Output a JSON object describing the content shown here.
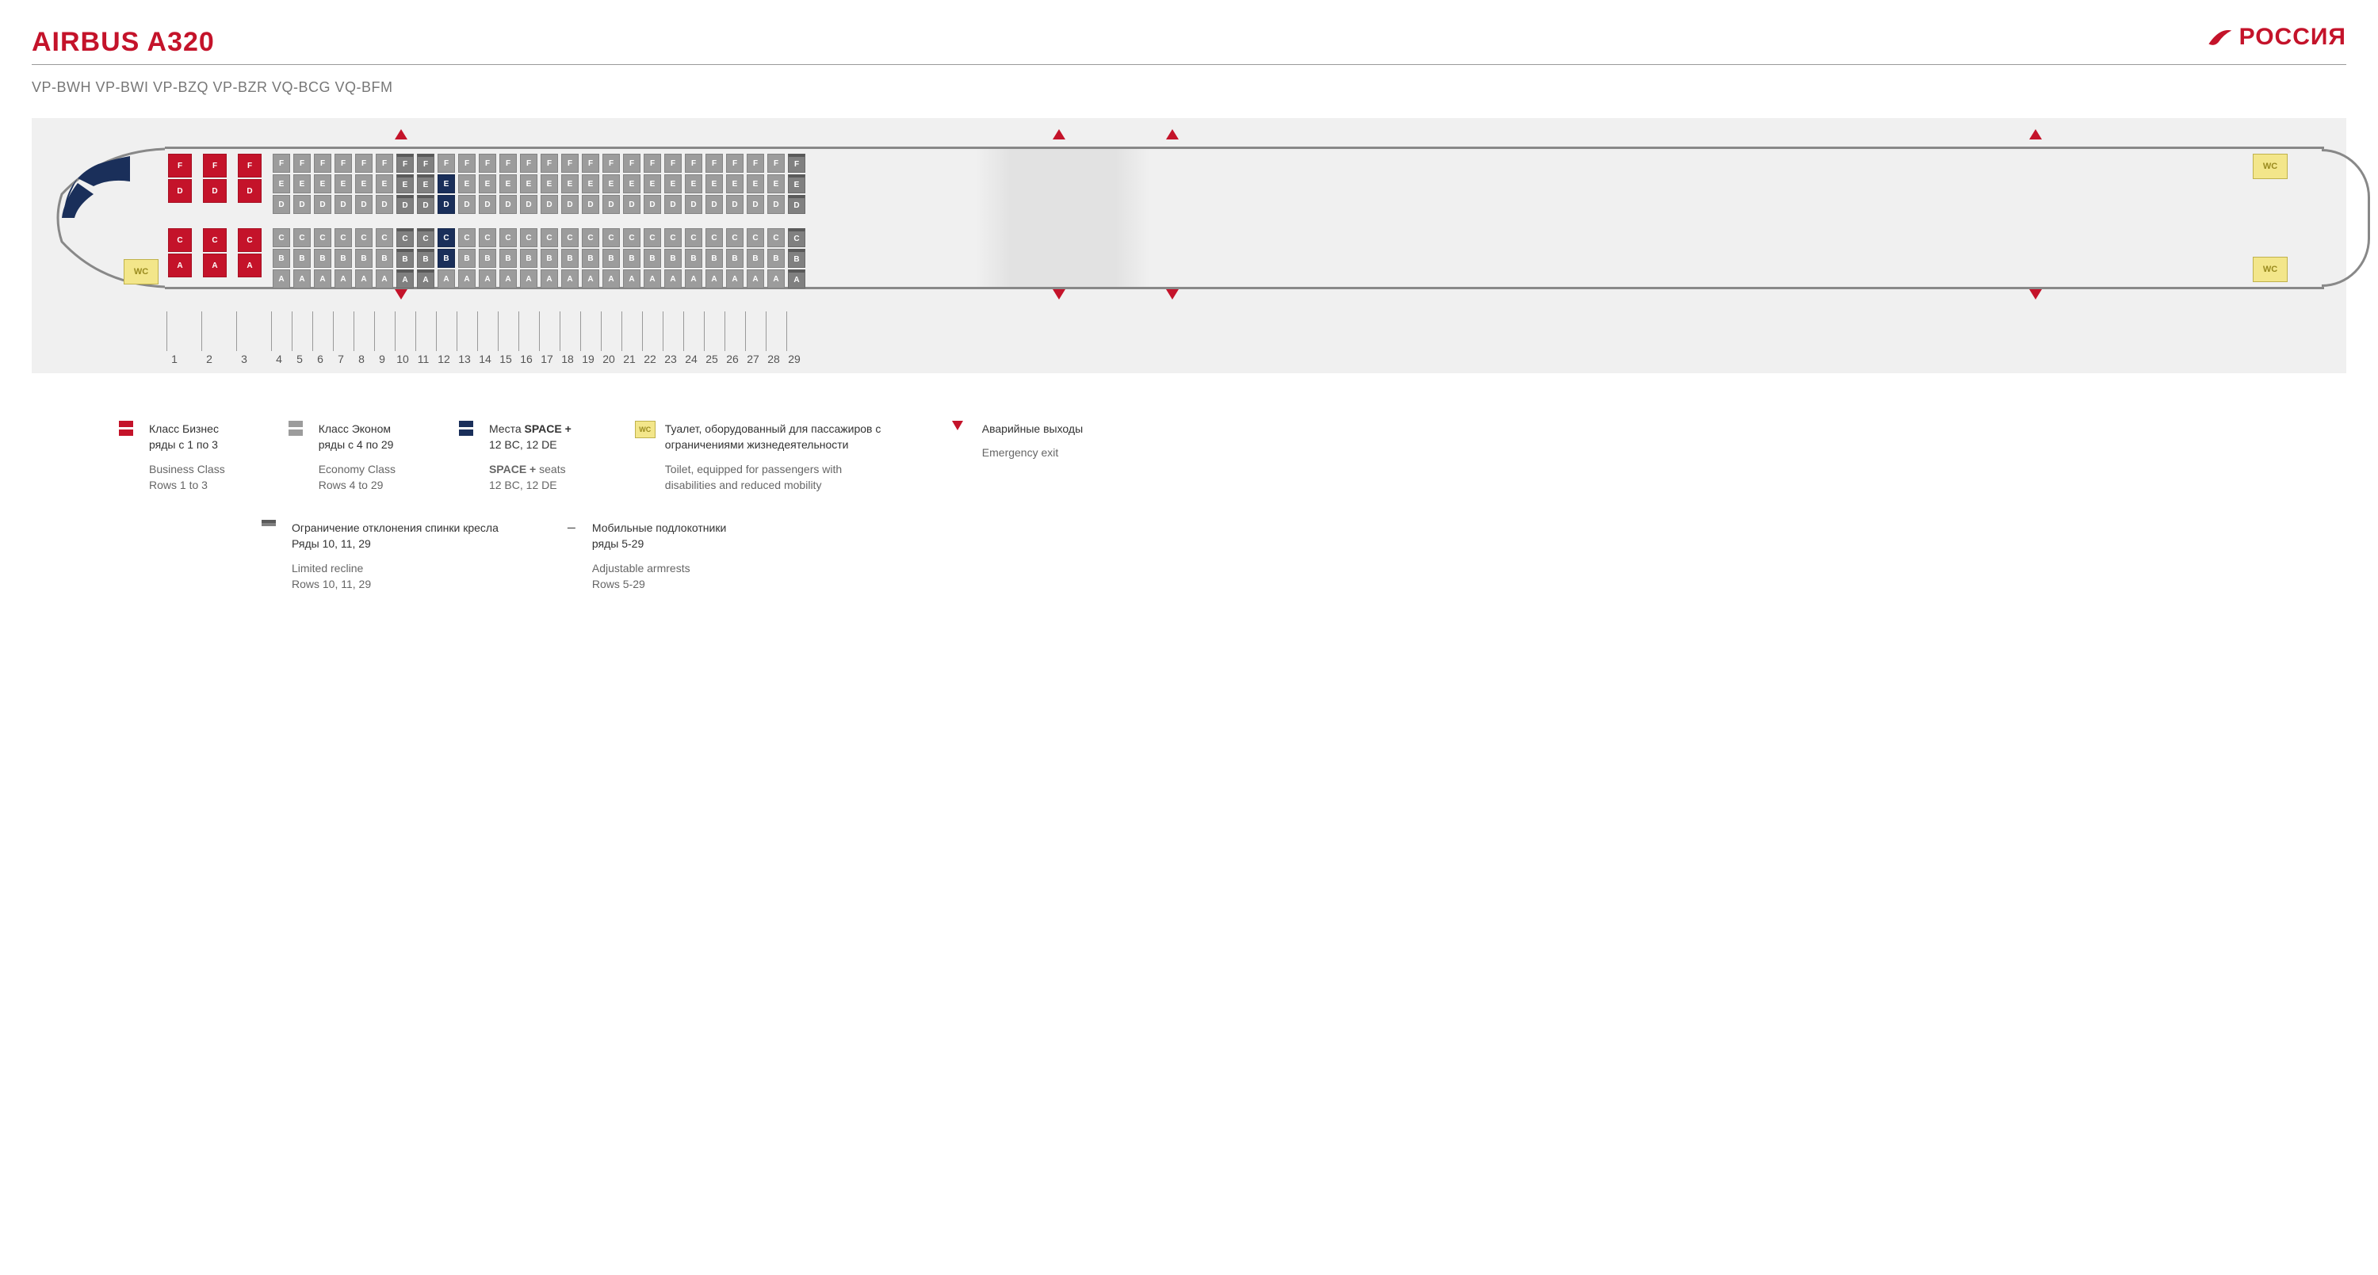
{
  "header": {
    "title": "AIRBUS A320",
    "brand": "РОССИЯ",
    "brand_color": "#c4132a"
  },
  "regs": "VP-BWH    VP-BWI    VP-BZQ    VP-BZR    VQ-BCG    VQ-BFM",
  "colors": {
    "business": "#c4132a",
    "economy": "#9c9c9c",
    "space": "#1a2f5a",
    "limited": "#808080",
    "wc_bg": "#f3e68a",
    "wc_border": "#c0b24c",
    "outline": "#888888",
    "bg_frame": "#f0f0f0"
  },
  "cabin": {
    "letters_top_biz": [
      "F",
      "D"
    ],
    "letters_bot_biz": [
      "C",
      "A"
    ],
    "letters_top_econ": [
      "F",
      "E",
      "D"
    ],
    "letters_bot_econ": [
      "C",
      "B",
      "A"
    ],
    "biz_rows": [
      1,
      2,
      3
    ],
    "econ_rows": [
      4,
      5,
      6,
      7,
      8,
      9,
      10,
      11,
      12,
      13,
      14,
      15,
      16,
      17,
      18,
      19,
      20,
      21,
      22,
      23,
      24,
      25,
      26,
      27,
      28,
      29
    ],
    "space_rows": [
      12
    ],
    "space_seats_top": [
      "E",
      "D"
    ],
    "space_seats_bot": [
      "C",
      "B"
    ],
    "limited_rows": [
      10,
      11,
      29
    ],
    "wc_label": "WC"
  },
  "exits": {
    "top_positions_pct": [
      15,
      44,
      49,
      87
    ],
    "bottom_positions_pct": [
      15,
      44,
      49,
      87
    ]
  },
  "legend": {
    "biz": {
      "ru1": "Класс Бизнес",
      "ru2": "ряды с 1 по 3",
      "en1": "Business Class",
      "en2": "Rows 1 to 3"
    },
    "econ": {
      "ru1": "Класс Эконом",
      "ru2": "ряды с 4 по 29",
      "en1": "Economy Class",
      "en2": "Rows 4 to 29"
    },
    "space": {
      "ru1": "Места",
      "ru1b": "SPACE +",
      "ru2": "12 BC, 12 DE",
      "en1b": "SPACE +",
      "en1": " seats",
      "en2": "12 BC, 12 DE"
    },
    "wc": {
      "ru": "Туалет, оборудованный для пассажиров с ограничениями жизнедеятельности",
      "en": "Toilet, equipped for passengers with disabilities and reduced mobility"
    },
    "exit": {
      "ru": "Аварийные выходы",
      "en": "Emergency exit"
    },
    "recline": {
      "ru1": "Ограничение отклонения спинки кресла",
      "ru2": "Ряды 10, 11, 29",
      "en1": "Limited recline",
      "en2": "Rows 10, 11, 29"
    },
    "armrest": {
      "ru1": "Мобильные подлокотники",
      "ru2": "ряды 5-29",
      "en1": "Adjustable armrests",
      "en2": "Rows 5-29"
    }
  }
}
